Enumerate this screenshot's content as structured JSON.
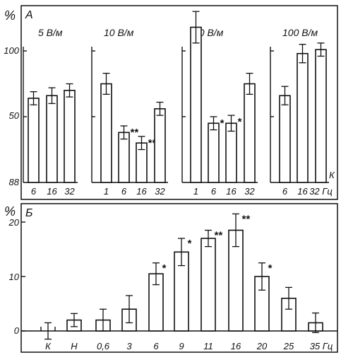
{
  "chart_data": [
    {
      "type": "bar",
      "panel_label": "А",
      "ylabel": "%",
      "yticks": [
        "100",
        "50",
        "88"
      ],
      "groups": [
        {
          "title": "5 В/м",
          "categories": [
            "6",
            "16",
            "32"
          ],
          "values": [
            64,
            66,
            70
          ],
          "errors": [
            5,
            6,
            5
          ],
          "marks": [
            "",
            "",
            ""
          ]
        },
        {
          "title": "10 В/м",
          "categories": [
            "1",
            "6",
            "16",
            "32"
          ],
          "values": [
            75,
            38,
            30,
            56
          ],
          "errors": [
            8,
            5,
            5,
            5
          ],
          "marks": [
            "",
            "**",
            "**",
            ""
          ]
        },
        {
          "title": "50 В/м",
          "categories": [
            "1",
            "6",
            "16",
            "32"
          ],
          "values": [
            118,
            45,
            45,
            75
          ],
          "errors": [
            12,
            5,
            6,
            8
          ],
          "marks": [
            "",
            "*",
            "*",
            ""
          ]
        },
        {
          "title": "100 В/м",
          "categories": [
            "6",
            "16",
            "32 Гц"
          ],
          "values": [
            66,
            98,
            101
          ],
          "errors": [
            7,
            7,
            5
          ],
          "marks": [
            "",
            "",
            ""
          ],
          "hatched_label": "К"
        }
      ]
    },
    {
      "type": "bar",
      "panel_label": "Б",
      "ylabel": "%",
      "yticks": [
        "20",
        "10",
        "0"
      ],
      "ylim": [
        0,
        20
      ],
      "categories": [
        "К",
        "Н",
        "0,6",
        "3",
        "6",
        "9",
        "11",
        "16",
        "20",
        "25",
        "35 Гц"
      ],
      "values": [
        0,
        2,
        2,
        4,
        10.5,
        14.5,
        17,
        18.5,
        10,
        6,
        1.5
      ],
      "errors": [
        1.5,
        1.2,
        2,
        2.5,
        2,
        2.5,
        1.5,
        3,
        2.5,
        2,
        1.8
      ],
      "marks": [
        "",
        "",
        "",
        "",
        "*",
        "*",
        "**",
        "**",
        "*",
        "",
        ""
      ]
    }
  ]
}
